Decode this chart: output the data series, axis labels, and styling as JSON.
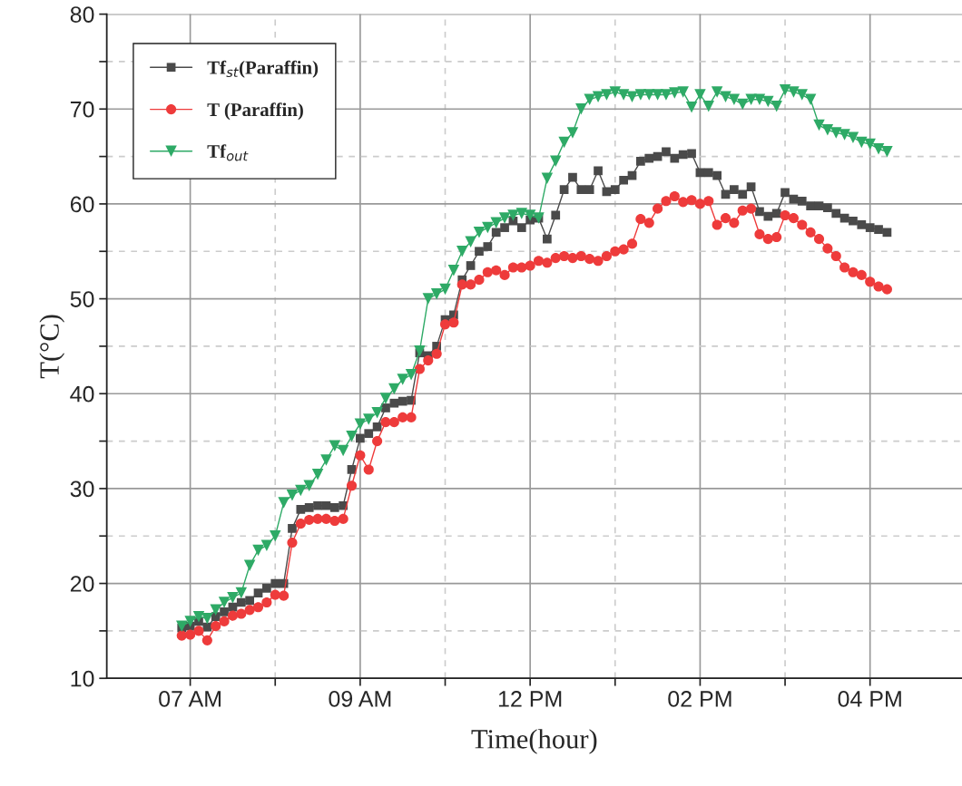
{
  "chart_data": {
    "type": "line",
    "xlabel": "Time(hour)",
    "ylabel": "T(°C)",
    "categories": [
      null,
      "07 AM",
      null,
      null,
      null,
      null,
      null,
      null,
      null,
      null,
      null,
      null,
      null,
      null,
      null,
      null,
      null,
      null,
      null,
      null,
      null,
      "09 AM",
      null,
      null,
      null,
      null,
      null,
      null,
      null,
      null,
      null,
      null,
      null,
      null,
      null,
      null,
      null,
      null,
      null,
      null,
      null,
      "12 PM",
      null,
      null,
      null,
      null,
      null,
      null,
      null,
      null,
      null,
      null,
      null,
      null,
      null,
      null,
      null,
      null,
      null,
      null,
      null,
      "02 PM",
      null,
      null,
      null,
      null,
      null,
      null,
      null,
      null,
      null,
      null,
      null,
      null,
      null,
      null,
      null,
      null,
      null,
      null,
      null,
      "04 PM",
      null,
      null
    ],
    "series": [
      {
        "name": "Tf$_{st}$(Paraffin)",
        "color": "#4a4a4a",
        "marker": "square",
        "values": [
          15.3,
          15.5,
          16.0,
          15.4,
          16.5,
          17.0,
          17.5,
          18.0,
          18.2,
          19.0,
          19.5,
          20.0,
          20.0,
          25.8,
          27.8,
          28.0,
          28.2,
          28.2,
          28.0,
          28.2,
          32.0,
          35.3,
          35.8,
          36.5,
          38.5,
          39.0,
          39.2,
          39.3,
          44.3,
          44.0,
          45.0,
          47.8,
          48.3,
          52.0,
          53.5,
          55.0,
          55.5,
          57.0,
          57.5,
          58.2,
          57.5,
          58.3,
          58.5,
          56.3,
          58.8,
          61.5,
          62.8,
          61.5,
          61.5,
          63.5,
          61.3,
          61.5,
          62.5,
          63.0,
          64.5,
          64.8,
          65.0,
          65.5,
          64.8,
          65.2,
          65.3,
          63.3,
          63.3,
          63.0,
          61.0,
          61.5,
          61.0,
          61.8,
          59.2,
          58.7,
          59.0,
          61.2,
          60.5,
          60.3,
          59.8,
          59.8,
          59.6,
          59.0,
          58.5,
          58.2,
          57.8,
          57.5,
          57.3,
          57.0
        ]
      },
      {
        "name": "T (Paraffin)",
        "color": "#ee3b3b",
        "marker": "circle",
        "values": [
          14.5,
          14.6,
          15.0,
          14.0,
          15.5,
          16.0,
          16.6,
          16.8,
          17.2,
          17.5,
          18.0,
          18.8,
          18.7,
          24.3,
          26.3,
          26.7,
          26.8,
          26.8,
          26.6,
          26.8,
          30.3,
          33.5,
          32.0,
          35.0,
          37.0,
          37.0,
          37.5,
          37.5,
          42.6,
          43.5,
          44.2,
          47.3,
          47.5,
          51.5,
          51.5,
          52.0,
          52.8,
          53.0,
          52.5,
          53.3,
          53.3,
          53.5,
          54.0,
          53.8,
          54.3,
          54.5,
          54.3,
          54.5,
          54.2,
          54.0,
          54.5,
          55.0,
          55.2,
          55.8,
          58.4,
          58.0,
          59.5,
          60.3,
          60.8,
          60.2,
          60.4,
          60.0,
          60.3,
          57.8,
          58.5,
          58.0,
          59.3,
          59.5,
          56.8,
          56.3,
          56.5,
          58.8,
          58.5,
          57.8,
          57.0,
          56.3,
          55.3,
          54.5,
          53.3,
          52.8,
          52.5,
          51.8,
          51.3,
          51.0
        ]
      },
      {
        "name": "Tf$_{out}$",
        "color": "#2eaa66",
        "marker": "triangle",
        "values": [
          15.5,
          16.0,
          16.5,
          16.3,
          17.2,
          18.0,
          18.5,
          19.0,
          21.9,
          23.5,
          24.0,
          25.0,
          28.5,
          29.3,
          29.8,
          30.3,
          31.5,
          33.0,
          34.5,
          34.0,
          35.5,
          36.8,
          37.3,
          38.0,
          39.5,
          40.5,
          41.5,
          42.0,
          44.5,
          50.0,
          50.5,
          51.0,
          53.0,
          55.0,
          56.0,
          57.0,
          57.5,
          58.0,
          58.5,
          58.8,
          59.0,
          58.8,
          58.5,
          62.7,
          64.5,
          66.5,
          67.5,
          70.0,
          71.0,
          71.3,
          71.5,
          71.8,
          71.5,
          71.3,
          71.5,
          71.5,
          71.5,
          71.5,
          71.7,
          71.8,
          70.2,
          71.5,
          70.3,
          71.8,
          71.3,
          71.0,
          70.5,
          71.0,
          71.0,
          70.8,
          70.3,
          72.0,
          71.8,
          71.5,
          71.0,
          68.3,
          67.8,
          67.5,
          67.3,
          67.0,
          66.5,
          66.3,
          65.8,
          65.5
        ]
      }
    ],
    "ylim": [
      10,
      80
    ],
    "yticks": [
      10,
      {
        "value": 15,
        "label": null
      },
      20,
      {
        "value": 25,
        "label": null
      },
      30,
      {
        "value": 35,
        "label": null
      },
      40,
      {
        "value": 45,
        "label": null
      },
      50,
      {
        "value": 55,
        "label": null
      },
      60,
      {
        "value": 65,
        "label": null
      },
      70,
      {
        "value": 75,
        "label": null
      },
      80
    ],
    "grid": true,
    "legend": "top left",
    "line_style": "solid"
  }
}
